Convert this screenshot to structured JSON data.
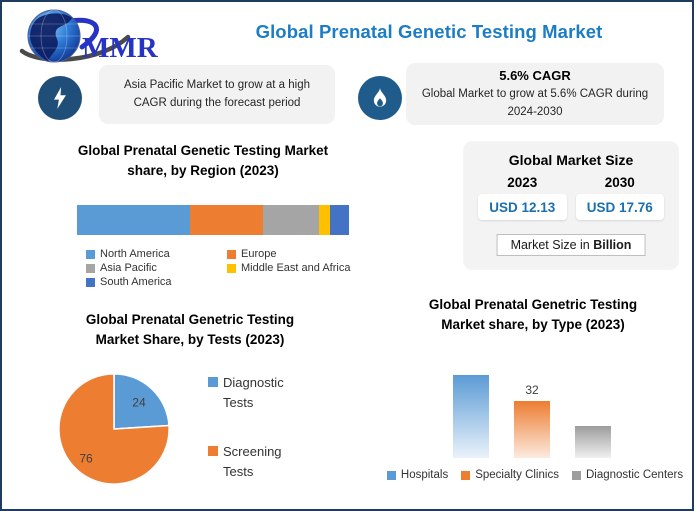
{
  "page": {
    "title": "Global Prenatal Genetic Testing Market",
    "logo_text": "MMR",
    "accent_color": "#1d7dc4",
    "border_color": "#1f3c5f"
  },
  "callouts": [
    {
      "icon": "lightning-icon",
      "lines": [
        "Asia Pacific Market to grow at a high",
        "CAGR during the forecast period"
      ]
    },
    {
      "icon": "flame-icon",
      "headline": "5.6% CAGR",
      "lines": [
        "Global Market to grow at 5.6% CAGR during",
        "2024-2030"
      ]
    }
  ],
  "market_size": {
    "title": "Global Market Size",
    "years": [
      "2023",
      "2030"
    ],
    "values": [
      "USD 12.13",
      "USD 17.76"
    ],
    "value_color": "#1b6fb0",
    "footnote_prefix": "Market Size in ",
    "footnote_bold": "Billion"
  },
  "chart_data": [
    {
      "type": "bar",
      "variant": "stacked-horizontal",
      "title_lines": [
        "Global Prenatal Genetic Testing Market",
        "share, by Region (2023)"
      ],
      "series": [
        {
          "name": "North America",
          "value": 42,
          "color": "#5b9bd5"
        },
        {
          "name": "Europe",
          "value": 27,
          "color": "#ed7d31"
        },
        {
          "name": "Asia Pacific",
          "value": 21,
          "color": "#a5a5a5"
        },
        {
          "name": "Middle East and Africa",
          "value": 4,
          "color": "#ffc000"
        },
        {
          "name": "South America",
          "value": 7,
          "color": "#4472c4"
        }
      ],
      "note": "segment sizes estimated from bar proportions; no numeric labels shown",
      "legend_position": "bottom"
    },
    {
      "type": "pie",
      "title_lines": [
        "Global Prenatal Genetric Testing",
        "Market Share, by Tests (2023)"
      ],
      "slices": [
        {
          "name": "Diagnostic Tests",
          "value": 24,
          "color": "#5b9bd5"
        },
        {
          "name": "Screening Tests",
          "value": 76,
          "color": "#ed7d31"
        }
      ],
      "label_color": "#404040",
      "legend_position": "right"
    },
    {
      "type": "bar",
      "title_lines": [
        "Global Prenatal Genetric Testing",
        "Market share, by Type (2023)"
      ],
      "categories": [
        "Hospitals",
        "Specialty Clinics",
        "Diagnostic Centers"
      ],
      "values": [
        47,
        32,
        18
      ],
      "data_labels": [
        null,
        32,
        null
      ],
      "colors": [
        "#5b9bd5",
        "#ed7d31",
        "#9d9d9d"
      ],
      "gradient_to": [
        "#eaf2fa",
        "#fcebe0",
        "#f0f0f0"
      ],
      "note": "only the Specialty Clinics bar shows a data label (32); other values estimated from bar heights",
      "legend_position": "bottom"
    }
  ]
}
